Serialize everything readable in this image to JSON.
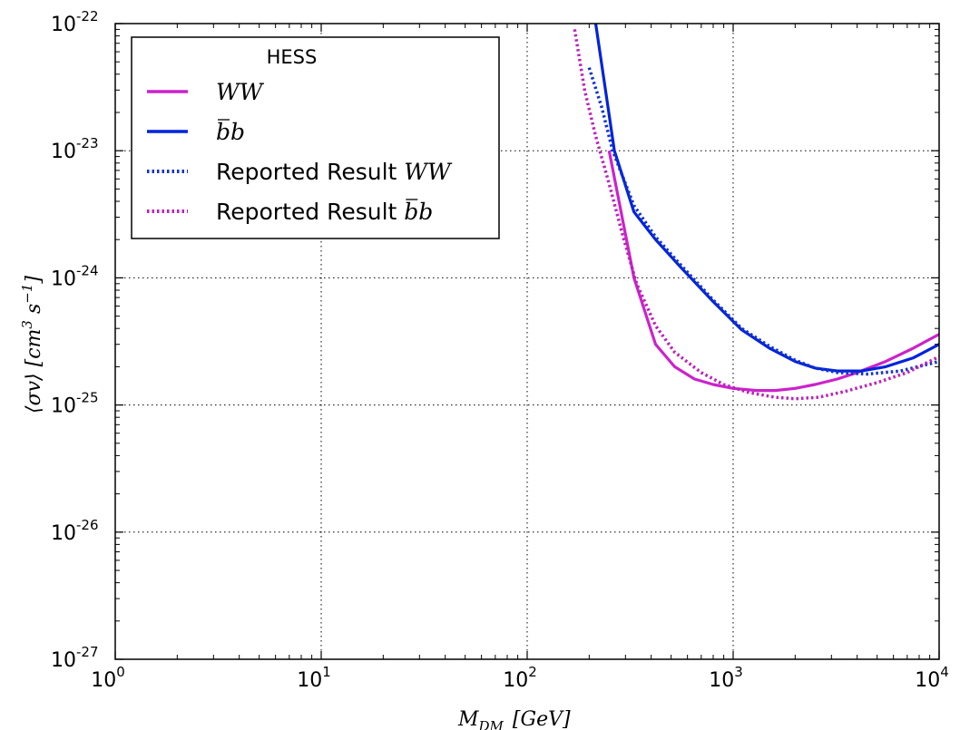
{
  "chart_data": {
    "type": "line",
    "xscale": "log",
    "yscale": "log",
    "xlim": [
      1,
      10000
    ],
    "ylim": [
      1e-27,
      1e-22
    ],
    "grid": true,
    "legend_position": "top-left",
    "legend_title": "HESS",
    "xlabel": "M_{DM} [GeV]",
    "ylabel": "⟨σv⟩ [cm^3 s^-1]",
    "x_ticks": [
      {
        "value": 1,
        "base": "10",
        "exp": "0"
      },
      {
        "value": 10,
        "base": "10",
        "exp": "1"
      },
      {
        "value": 100,
        "base": "10",
        "exp": "2"
      },
      {
        "value": 1000,
        "base": "10",
        "exp": "3"
      },
      {
        "value": 10000,
        "base": "10",
        "exp": "4"
      }
    ],
    "y_ticks": [
      {
        "value": 1e-27,
        "base": "10",
        "exp": "-27"
      },
      {
        "value": 1e-26,
        "base": "10",
        "exp": "-26"
      },
      {
        "value": 1e-25,
        "base": "10",
        "exp": "-25"
      },
      {
        "value": 1e-24,
        "base": "10",
        "exp": "-24"
      },
      {
        "value": 1e-23,
        "base": "10",
        "exp": "-23"
      },
      {
        "value": 1e-22,
        "base": "10",
        "exp": "-22"
      }
    ],
    "series": [
      {
        "name": "WW",
        "color": "#cc22cc",
        "style": "solid",
        "points": [
          [
            250,
            1e-23
          ],
          [
            330,
            1e-24
          ],
          [
            420,
            3e-25
          ],
          [
            520,
            2e-25
          ],
          [
            650,
            1.6e-25
          ],
          [
            800,
            1.45e-25
          ],
          [
            1000,
            1.35e-25
          ],
          [
            1300,
            1.3e-25
          ],
          [
            1600,
            1.3e-25
          ],
          [
            2000,
            1.35e-25
          ],
          [
            2500,
            1.45e-25
          ],
          [
            3200,
            1.6e-25
          ],
          [
            4000,
            1.8e-25
          ],
          [
            5500,
            2.2e-25
          ],
          [
            7500,
            2.8e-25
          ],
          [
            10000,
            3.6e-25
          ]
        ]
      },
      {
        "name": "bb",
        "color": "#0022dd",
        "style": "solid",
        "points": [
          [
            215,
            1e-22
          ],
          [
            240,
            3e-23
          ],
          [
            265,
            1e-23
          ],
          [
            330,
            3.3e-24
          ],
          [
            420,
            2e-24
          ],
          [
            560,
            1.2e-24
          ],
          [
            800,
            6.5e-25
          ],
          [
            1100,
            3.9e-25
          ],
          [
            1500,
            2.8e-25
          ],
          [
            2000,
            2.2e-25
          ],
          [
            2500,
            1.95e-25
          ],
          [
            3200,
            1.85e-25
          ],
          [
            4200,
            1.85e-25
          ],
          [
            5500,
            2e-25
          ],
          [
            7500,
            2.35e-25
          ],
          [
            10000,
            3e-25
          ]
        ]
      },
      {
        "name": "Reported Result WW",
        "color": "#1133cc",
        "style": "dotted",
        "points": [
          [
            200,
            4.5e-23
          ],
          [
            230,
            2.2e-23
          ],
          [
            260,
            1e-23
          ],
          [
            330,
            3.7e-24
          ],
          [
            420,
            2.1e-24
          ],
          [
            560,
            1.25e-24
          ],
          [
            800,
            6.7e-25
          ],
          [
            1100,
            4e-25
          ],
          [
            1500,
            2.9e-25
          ],
          [
            2000,
            2.25e-25
          ],
          [
            2500,
            1.95e-25
          ],
          [
            3200,
            1.8e-25
          ],
          [
            4500,
            1.75e-25
          ],
          [
            6500,
            1.85e-25
          ],
          [
            10000,
            2.2e-25
          ]
        ]
      },
      {
        "name": "Reported Result bb",
        "color": "#bb22bb",
        "style": "dotted",
        "points": [
          [
            170,
            9e-23
          ],
          [
            190,
            3e-23
          ],
          [
            215,
            1.3e-23
          ],
          [
            250,
            5.5e-24
          ],
          [
            290,
            2.2e-24
          ],
          [
            340,
            9e-25
          ],
          [
            420,
            4.2e-25
          ],
          [
            520,
            2.6e-25
          ],
          [
            700,
            1.8e-25
          ],
          [
            900,
            1.45e-25
          ],
          [
            1200,
            1.25e-25
          ],
          [
            1600,
            1.15e-25
          ],
          [
            2000,
            1.12e-25
          ],
          [
            2600,
            1.15e-25
          ],
          [
            3500,
            1.28e-25
          ],
          [
            5000,
            1.5e-25
          ],
          [
            7000,
            1.8e-25
          ],
          [
            10000,
            2.4e-25
          ]
        ]
      }
    ]
  },
  "legend": {
    "title": "HESS",
    "items": [
      {
        "name": "WW",
        "prefix": "",
        "math": "WW",
        "bar": false
      },
      {
        "name": "bb",
        "prefix": "",
        "math": "bb",
        "bar": true
      },
      {
        "name": "Reported Result WW",
        "prefix": "Reported Result ",
        "math": "WW",
        "bar": false
      },
      {
        "name": "Reported Result bb",
        "prefix": "Reported Result ",
        "math": "bb",
        "bar": true
      }
    ]
  }
}
